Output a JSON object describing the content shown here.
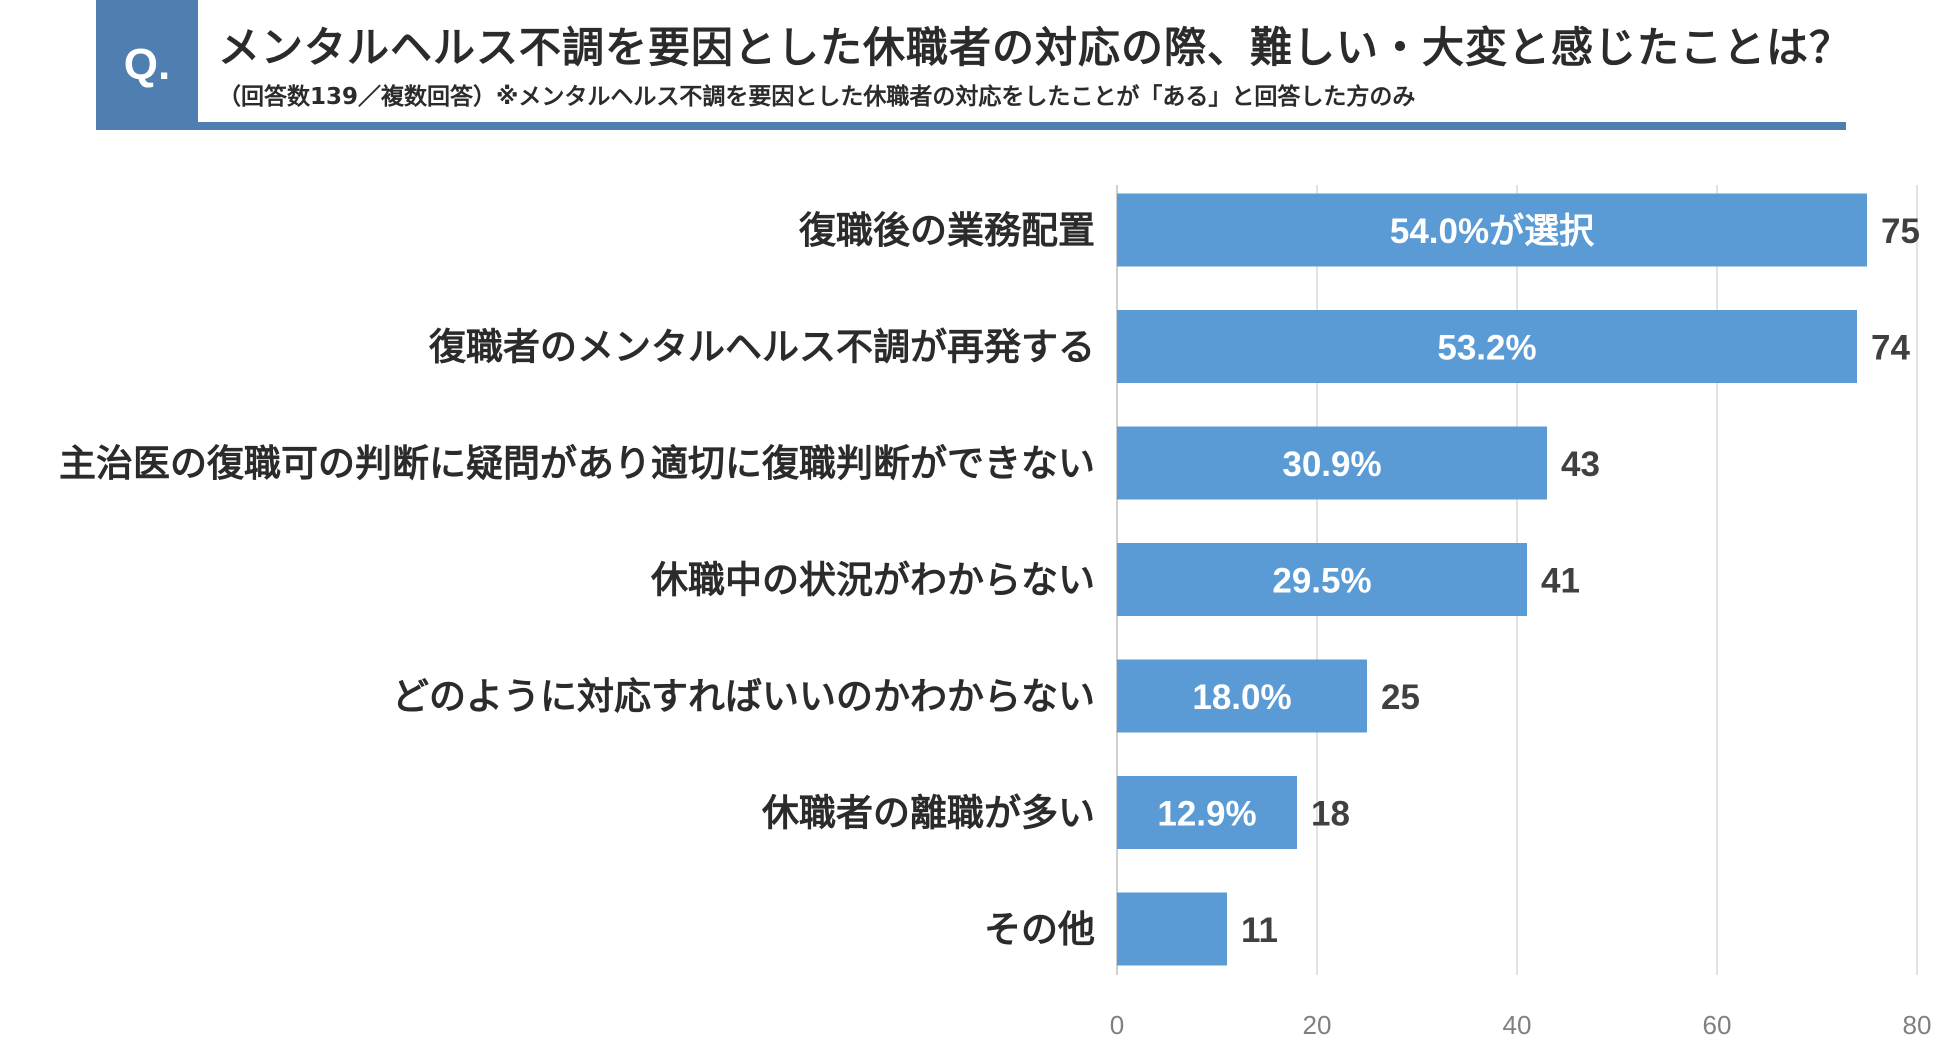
{
  "header": {
    "q_label": "Q.",
    "title": "メンタルヘルス不調を要因とした休職者の対応の際、難しい・大変と感じたことは？",
    "subtitle": "（回答数139／複数回答）※メンタルヘルス不調を要因とした休職者の対応をしたことが「ある」と回答した方のみ"
  },
  "chart_data": {
    "type": "bar",
    "orientation": "horizontal",
    "title": "",
    "xlabel": "",
    "ylabel": "",
    "xlim": [
      0,
      80
    ],
    "ticks": [
      0,
      20,
      40,
      60,
      80
    ],
    "tick_labels": [
      "0",
      "20",
      "40",
      "60",
      "80"
    ],
    "grid": true,
    "bar_color": "#5b9bd5",
    "categories": [
      "復職後の業務配置",
      "復職者のメンタルヘルス不調が再発する",
      "主治医の復職可の判断に疑問があり適切に復職判断ができない",
      "休職中の状況がわからない",
      "どのように対応すればいいのかわからない",
      "休職者の離職が多い",
      "その他"
    ],
    "values": [
      75,
      74,
      43,
      41,
      25,
      18,
      11
    ],
    "bar_labels": [
      "54.0%が選択",
      "53.2%",
      "30.9%",
      "29.5%",
      "18.0%",
      "12.9%",
      ""
    ]
  }
}
